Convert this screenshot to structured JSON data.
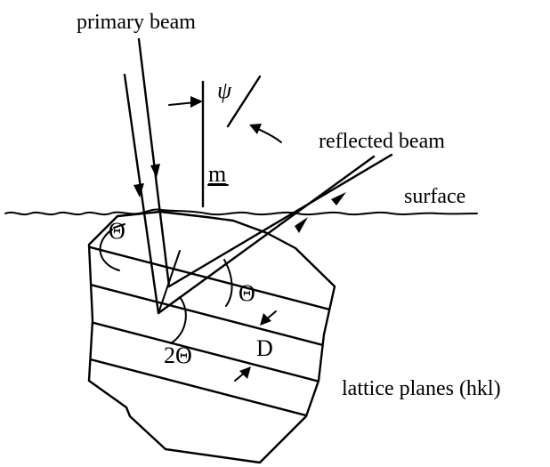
{
  "labels": {
    "primary_beam": "primary beam",
    "reflected_beam": "reflected beam",
    "surface": "surface",
    "lattice_planes": "lattice planes (hkl)",
    "psi": "ψ",
    "m": "m",
    "theta_left": "Θ",
    "theta_right": "Θ",
    "two_theta": "2Θ",
    "d_spacing": "D"
  }
}
